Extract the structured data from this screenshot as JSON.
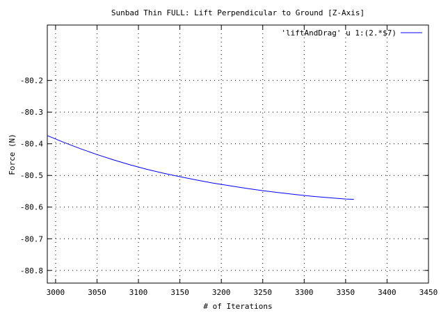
{
  "chart_data": {
    "type": "line",
    "title": "Sunbad Thin FULL: Lift Perpendicular to Ground [Z-Axis]",
    "xlabel": "# of Iterations",
    "ylabel": "Force (N)",
    "xlim": [
      2990,
      3450
    ],
    "ylim": [
      -80.84,
      -80.025
    ],
    "x_ticks": [
      3000,
      3050,
      3100,
      3150,
      3200,
      3250,
      3300,
      3350,
      3400,
      3450
    ],
    "y_ticks": [
      -80.2,
      -80.3,
      -80.4,
      -80.5,
      -80.6,
      -80.7,
      -80.8
    ],
    "x_tick_labels": [
      "3000",
      "3050",
      "3100",
      "3150",
      "3200",
      "3250",
      "3300",
      "3350",
      "3400",
      "3450"
    ],
    "y_tick_labels": [
      "-80.2",
      "-80.3",
      "-80.4",
      "-80.5",
      "-80.6",
      "-80.7",
      "-80.8"
    ],
    "grid": true,
    "legend_position": "top-right",
    "series": [
      {
        "name": "'liftAndDrag' u 1:(2.*$7)",
        "color": "#0000ff",
        "x": [
          2990,
          3010,
          3030,
          3050,
          3070,
          3090,
          3110,
          3130,
          3150,
          3170,
          3190,
          3210,
          3230,
          3250,
          3270,
          3290,
          3310,
          3330,
          3350,
          3360
        ],
        "y": [
          -80.374,
          -80.3955,
          -80.4155,
          -80.434,
          -80.451,
          -80.4665,
          -80.4805,
          -80.493,
          -80.504,
          -80.5145,
          -80.524,
          -80.5325,
          -80.5405,
          -80.548,
          -80.5545,
          -80.5605,
          -80.566,
          -80.5705,
          -80.5745,
          -80.5755
        ]
      }
    ]
  }
}
